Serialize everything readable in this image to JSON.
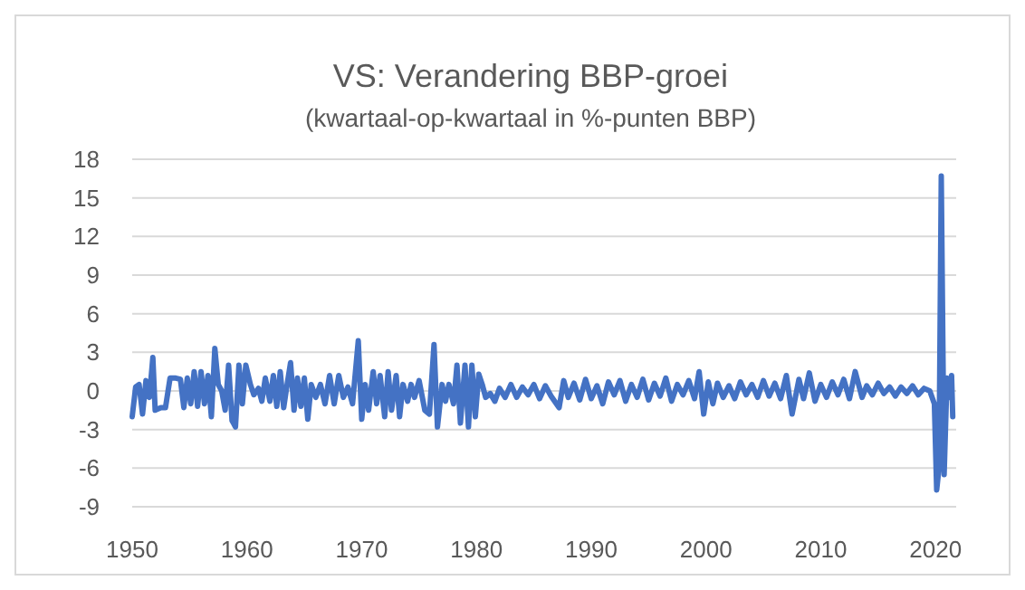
{
  "chart_data": {
    "type": "line",
    "title": "VS: Verandering BBP-groei",
    "subtitle": "(kwartaal-op-kwartaal in %-punten BBP)",
    "xlim": [
      1950,
      2021.8
    ],
    "xticks": [
      1950,
      1960,
      1970,
      1980,
      1990,
      2000,
      2010,
      2020
    ],
    "ylim": [
      -9,
      18
    ],
    "yticks": [
      -9,
      -6,
      -3,
      0,
      3,
      6,
      9,
      12,
      15,
      18
    ],
    "grid": "y",
    "marker": "none",
    "line_style": "solid",
    "series": [
      {
        "color": "#4472c4",
        "x": [
          1950.0,
          1950.3,
          1950.6,
          1950.9,
          1951.2,
          1951.5,
          1951.8,
          1952.0,
          1952.5,
          1952.9,
          1953.3,
          1953.8,
          1954.2,
          1954.5,
          1954.8,
          1955.1,
          1955.4,
          1955.7,
          1956.0,
          1956.3,
          1956.6,
          1956.9,
          1957.2,
          1957.5,
          1957.8,
          1958.1,
          1958.4,
          1958.7,
          1959.0,
          1959.3,
          1959.6,
          1959.9,
          1960.3,
          1960.6,
          1961.0,
          1961.3,
          1961.6,
          1962.0,
          1962.3,
          1962.6,
          1962.9,
          1963.2,
          1963.5,
          1963.8,
          1964.1,
          1964.4,
          1964.7,
          1965.0,
          1965.3,
          1965.6,
          1966.0,
          1966.4,
          1966.8,
          1967.2,
          1967.6,
          1968.0,
          1968.4,
          1968.8,
          1969.2,
          1969.7,
          1970.0,
          1970.3,
          1970.6,
          1971.0,
          1971.3,
          1971.6,
          1972.0,
          1972.3,
          1972.6,
          1973.0,
          1973.3,
          1973.6,
          1974.0,
          1974.3,
          1974.6,
          1975.0,
          1975.5,
          1975.9,
          1976.3,
          1976.6,
          1977.0,
          1977.3,
          1977.6,
          1978.0,
          1978.3,
          1978.6,
          1979.0,
          1979.3,
          1979.6,
          1979.9,
          1980.2,
          1980.5,
          1980.8,
          1981.2,
          1981.6,
          1982.0,
          1982.5,
          1983.0,
          1983.5,
          1984.0,
          1984.5,
          1985.0,
          1985.5,
          1986.0,
          1986.5,
          1987.2,
          1987.6,
          1988.0,
          1988.5,
          1989.0,
          1989.5,
          1990.0,
          1990.5,
          1991.0,
          1991.5,
          1992.0,
          1992.5,
          1993.0,
          1993.5,
          1994.0,
          1994.5,
          1995.0,
          1995.5,
          1996.0,
          1996.5,
          1997.0,
          1997.5,
          1998.0,
          1998.5,
          1999.0,
          1999.4,
          1999.8,
          2000.2,
          2000.6,
          2001.0,
          2001.5,
          2002.0,
          2002.5,
          2003.0,
          2003.5,
          2004.0,
          2004.5,
          2005.0,
          2005.5,
          2006.0,
          2006.5,
          2007.0,
          2007.5,
          2008.1,
          2008.5,
          2009.0,
          2009.5,
          2010.0,
          2010.5,
          2011.0,
          2011.5,
          2012.0,
          2012.5,
          2013.0,
          2013.6,
          2014.0,
          2014.5,
          2015.0,
          2015.5,
          2016.0,
          2016.5,
          2017.0,
          2017.5,
          2018.0,
          2018.5,
          2019.0,
          2019.5,
          2019.9,
          2020.1,
          2020.3,
          2020.5,
          2020.75,
          2021.0,
          2021.2,
          2021.4,
          2021.5
        ],
        "values": [
          -2.0,
          0.3,
          0.5,
          -1.8,
          0.8,
          -0.5,
          2.6,
          -1.5,
          -1.3,
          -1.3,
          1.0,
          1.0,
          0.9,
          -1.3,
          1.0,
          -1.0,
          1.5,
          -1.2,
          1.5,
          -1.0,
          1.2,
          -2.0,
          3.3,
          0.5,
          0.0,
          -1.5,
          2.0,
          -2.3,
          -2.8,
          2.0,
          -1.0,
          2.0,
          0.5,
          -0.3,
          0.2,
          -0.8,
          1.0,
          -0.8,
          1.2,
          -1.2,
          1.5,
          -1.3,
          0.5,
          2.2,
          -1.5,
          1.0,
          -1.2,
          1.0,
          -2.2,
          0.5,
          -0.5,
          0.5,
          -1.0,
          1.2,
          -1.0,
          1.2,
          -0.5,
          0.3,
          -1.0,
          3.9,
          -2.2,
          0.5,
          -1.5,
          1.5,
          -1.0,
          1.2,
          -2.0,
          1.5,
          -1.5,
          1.2,
          -2.0,
          0.5,
          -0.8,
          0.5,
          -0.5,
          0.8,
          -1.5,
          -1.8,
          3.6,
          -2.8,
          0.5,
          -0.8,
          0.5,
          -1.0,
          2.0,
          -2.5,
          2.0,
          -2.8,
          2.0,
          -2.0,
          1.3,
          0.5,
          -0.5,
          -0.2,
          -0.8,
          0.2,
          -0.5,
          0.5,
          -0.5,
          0.3,
          -0.3,
          0.5,
          -0.6,
          0.4,
          -0.4,
          -1.3,
          0.8,
          -0.5,
          0.6,
          -0.7,
          0.9,
          -0.6,
          0.4,
          -1.0,
          0.7,
          -0.3,
          0.8,
          -0.8,
          0.5,
          -0.5,
          0.9,
          -0.7,
          0.6,
          -0.4,
          1.0,
          -0.8,
          0.5,
          -0.3,
          0.8,
          -0.6,
          1.5,
          -1.8,
          0.7,
          -1.0,
          0.6,
          -0.5,
          0.4,
          -0.6,
          0.7,
          -0.3,
          0.5,
          -0.5,
          0.8,
          -0.4,
          0.6,
          -0.6,
          1.2,
          -1.8,
          0.9,
          -0.6,
          1.4,
          -0.8,
          0.5,
          -0.5,
          0.7,
          -0.3,
          0.9,
          -0.6,
          1.5,
          -0.5,
          0.4,
          -0.3,
          0.6,
          -0.2,
          0.3,
          -0.4,
          0.3,
          -0.2,
          0.4,
          -0.3,
          0.2,
          0.0,
          -1.0,
          -7.7,
          -6.0,
          16.7,
          -6.5,
          1.0,
          -0.5,
          1.2,
          -2.0
        ]
      }
    ]
  }
}
